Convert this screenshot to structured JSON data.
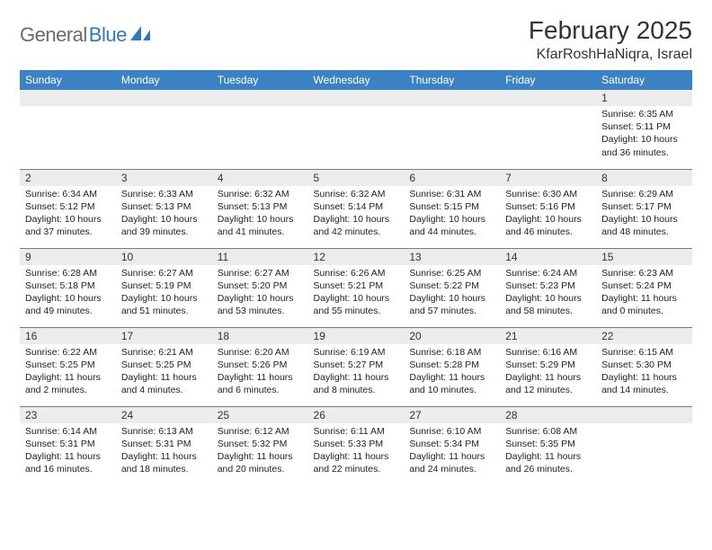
{
  "brand": {
    "name_gray": "General",
    "name_blue": "Blue"
  },
  "title": "February 2025",
  "location": "KfarRoshHaNiqra, Israel",
  "colors": {
    "header_bg": "#3b82c4",
    "header_text": "#ffffff",
    "daynum_bg": "#ececec",
    "row_border": "#7a7a7a",
    "logo_gray": "#6b6b6b",
    "logo_blue": "#2f78bf"
  },
  "typography": {
    "title_fontsize": 28,
    "location_fontsize": 16,
    "dayhead_fontsize": 12,
    "body_fontsize": 10.5
  },
  "days_of_week": [
    "Sunday",
    "Monday",
    "Tuesday",
    "Wednesday",
    "Thursday",
    "Friday",
    "Saturday"
  ],
  "weeks": [
    [
      {
        "n": "",
        "lines": []
      },
      {
        "n": "",
        "lines": []
      },
      {
        "n": "",
        "lines": []
      },
      {
        "n": "",
        "lines": []
      },
      {
        "n": "",
        "lines": []
      },
      {
        "n": "",
        "lines": []
      },
      {
        "n": "1",
        "lines": [
          "Sunrise: 6:35 AM",
          "Sunset: 5:11 PM",
          "Daylight: 10 hours and 36 minutes."
        ]
      }
    ],
    [
      {
        "n": "2",
        "lines": [
          "Sunrise: 6:34 AM",
          "Sunset: 5:12 PM",
          "Daylight: 10 hours and 37 minutes."
        ]
      },
      {
        "n": "3",
        "lines": [
          "Sunrise: 6:33 AM",
          "Sunset: 5:13 PM",
          "Daylight: 10 hours and 39 minutes."
        ]
      },
      {
        "n": "4",
        "lines": [
          "Sunrise: 6:32 AM",
          "Sunset: 5:13 PM",
          "Daylight: 10 hours and 41 minutes."
        ]
      },
      {
        "n": "5",
        "lines": [
          "Sunrise: 6:32 AM",
          "Sunset: 5:14 PM",
          "Daylight: 10 hours and 42 minutes."
        ]
      },
      {
        "n": "6",
        "lines": [
          "Sunrise: 6:31 AM",
          "Sunset: 5:15 PM",
          "Daylight: 10 hours and 44 minutes."
        ]
      },
      {
        "n": "7",
        "lines": [
          "Sunrise: 6:30 AM",
          "Sunset: 5:16 PM",
          "Daylight: 10 hours and 46 minutes."
        ]
      },
      {
        "n": "8",
        "lines": [
          "Sunrise: 6:29 AM",
          "Sunset: 5:17 PM",
          "Daylight: 10 hours and 48 minutes."
        ]
      }
    ],
    [
      {
        "n": "9",
        "lines": [
          "Sunrise: 6:28 AM",
          "Sunset: 5:18 PM",
          "Daylight: 10 hours and 49 minutes."
        ]
      },
      {
        "n": "10",
        "lines": [
          "Sunrise: 6:27 AM",
          "Sunset: 5:19 PM",
          "Daylight: 10 hours and 51 minutes."
        ]
      },
      {
        "n": "11",
        "lines": [
          "Sunrise: 6:27 AM",
          "Sunset: 5:20 PM",
          "Daylight: 10 hours and 53 minutes."
        ]
      },
      {
        "n": "12",
        "lines": [
          "Sunrise: 6:26 AM",
          "Sunset: 5:21 PM",
          "Daylight: 10 hours and 55 minutes."
        ]
      },
      {
        "n": "13",
        "lines": [
          "Sunrise: 6:25 AM",
          "Sunset: 5:22 PM",
          "Daylight: 10 hours and 57 minutes."
        ]
      },
      {
        "n": "14",
        "lines": [
          "Sunrise: 6:24 AM",
          "Sunset: 5:23 PM",
          "Daylight: 10 hours and 58 minutes."
        ]
      },
      {
        "n": "15",
        "lines": [
          "Sunrise: 6:23 AM",
          "Sunset: 5:24 PM",
          "Daylight: 11 hours and 0 minutes."
        ]
      }
    ],
    [
      {
        "n": "16",
        "lines": [
          "Sunrise: 6:22 AM",
          "Sunset: 5:25 PM",
          "Daylight: 11 hours and 2 minutes."
        ]
      },
      {
        "n": "17",
        "lines": [
          "Sunrise: 6:21 AM",
          "Sunset: 5:25 PM",
          "Daylight: 11 hours and 4 minutes."
        ]
      },
      {
        "n": "18",
        "lines": [
          "Sunrise: 6:20 AM",
          "Sunset: 5:26 PM",
          "Daylight: 11 hours and 6 minutes."
        ]
      },
      {
        "n": "19",
        "lines": [
          "Sunrise: 6:19 AM",
          "Sunset: 5:27 PM",
          "Daylight: 11 hours and 8 minutes."
        ]
      },
      {
        "n": "20",
        "lines": [
          "Sunrise: 6:18 AM",
          "Sunset: 5:28 PM",
          "Daylight: 11 hours and 10 minutes."
        ]
      },
      {
        "n": "21",
        "lines": [
          "Sunrise: 6:16 AM",
          "Sunset: 5:29 PM",
          "Daylight: 11 hours and 12 minutes."
        ]
      },
      {
        "n": "22",
        "lines": [
          "Sunrise: 6:15 AM",
          "Sunset: 5:30 PM",
          "Daylight: 11 hours and 14 minutes."
        ]
      }
    ],
    [
      {
        "n": "23",
        "lines": [
          "Sunrise: 6:14 AM",
          "Sunset: 5:31 PM",
          "Daylight: 11 hours and 16 minutes."
        ]
      },
      {
        "n": "24",
        "lines": [
          "Sunrise: 6:13 AM",
          "Sunset: 5:31 PM",
          "Daylight: 11 hours and 18 minutes."
        ]
      },
      {
        "n": "25",
        "lines": [
          "Sunrise: 6:12 AM",
          "Sunset: 5:32 PM",
          "Daylight: 11 hours and 20 minutes."
        ]
      },
      {
        "n": "26",
        "lines": [
          "Sunrise: 6:11 AM",
          "Sunset: 5:33 PM",
          "Daylight: 11 hours and 22 minutes."
        ]
      },
      {
        "n": "27",
        "lines": [
          "Sunrise: 6:10 AM",
          "Sunset: 5:34 PM",
          "Daylight: 11 hours and 24 minutes."
        ]
      },
      {
        "n": "28",
        "lines": [
          "Sunrise: 6:08 AM",
          "Sunset: 5:35 PM",
          "Daylight: 11 hours and 26 minutes."
        ]
      },
      {
        "n": "",
        "lines": []
      }
    ]
  ]
}
